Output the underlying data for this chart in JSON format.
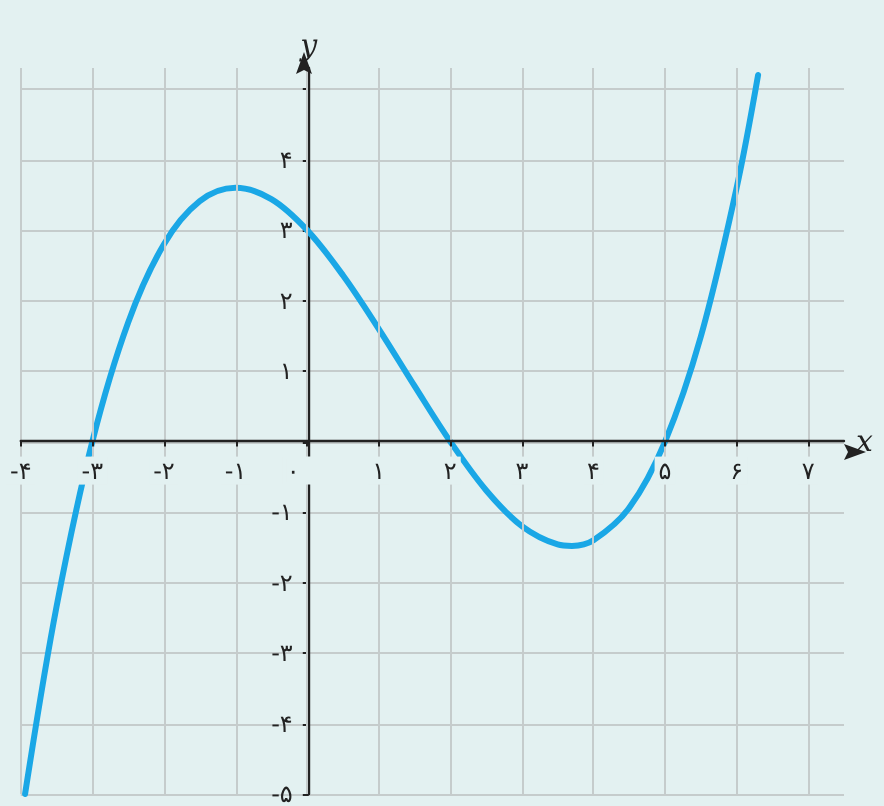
{
  "chart_data": {
    "type": "line",
    "xlabel": "x",
    "ylabel": "y",
    "x": [
      -3.94,
      -3.5,
      -3,
      -2.5,
      -2,
      -1.5,
      -1,
      -0.5,
      0,
      0.5,
      1,
      1.5,
      2,
      2.5,
      3,
      3.5,
      3.7,
      4,
      4.5,
      5,
      5.5,
      6,
      6.3
    ],
    "series": [
      {
        "color": "#1aa7e6",
        "values": [
          -5.0,
          -2.34,
          0,
          1.69,
          2.8,
          3.41,
          3.6,
          3.44,
          3,
          2.36,
          1.6,
          0.79,
          0,
          -0.69,
          -1.2,
          -1.46,
          -1.48,
          -1.4,
          -0.94,
          0,
          1.49,
          3.6,
          5.2
        ]
      }
    ],
    "xlim": [
      -4,
      7.5
    ],
    "ylim": [
      -5,
      5.3
    ],
    "xticks": [
      {
        "value": -4,
        "label": "-۴"
      },
      {
        "value": -3,
        "label": "-۳"
      },
      {
        "value": -2,
        "label": "-۲"
      },
      {
        "value": -1,
        "label": "-۱"
      },
      {
        "value": 0,
        "label": "۰"
      },
      {
        "value": 1,
        "label": "۱"
      },
      {
        "value": 2,
        "label": "۲"
      },
      {
        "value": 3,
        "label": "۳"
      },
      {
        "value": 4,
        "label": "۴"
      },
      {
        "value": 5,
        "label": "۵"
      },
      {
        "value": 6,
        "label": "۶"
      },
      {
        "value": 7,
        "label": "۷"
      }
    ],
    "yticks": [
      {
        "value": -5,
        "label": "-۵"
      },
      {
        "value": -4,
        "label": "-۴"
      },
      {
        "value": -3,
        "label": "-۳"
      },
      {
        "value": -2,
        "label": "-۲"
      },
      {
        "value": -1,
        "label": "-۱"
      },
      {
        "value": 0,
        "label": null
      },
      {
        "value": 1,
        "label": "۱"
      },
      {
        "value": 2,
        "label": "۲"
      },
      {
        "value": 3,
        "label": "۳"
      },
      {
        "value": 4,
        "label": "۴"
      },
      {
        "value": 5,
        "label": null
      }
    ],
    "grid": true,
    "marker": "none",
    "line_style": "solid"
  }
}
